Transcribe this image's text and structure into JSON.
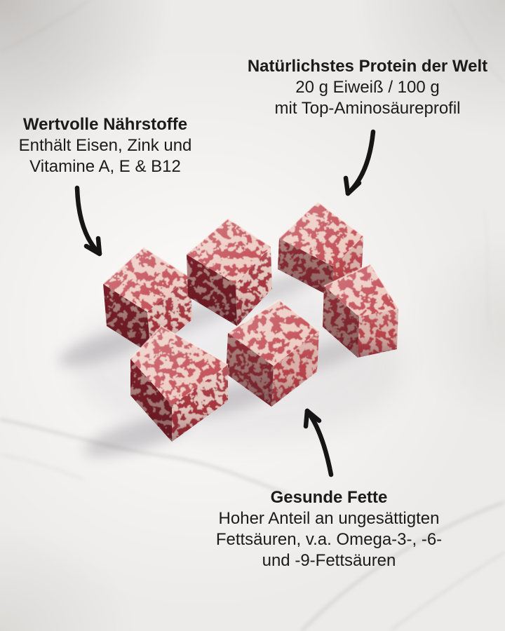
{
  "annotations": {
    "protein": {
      "title": "Natürlichstes Protein der Welt",
      "lines": [
        "20 g Eiweiß / 100 g",
        "mit Top-Aminosäureprofil"
      ]
    },
    "nutrients": {
      "title": "Wertvolle Nährstoffe",
      "lines": [
        "Enthält Eisen, Zink und",
        "Vitamine A, E & B12"
      ]
    },
    "fats": {
      "title": "Gesunde Fette",
      "lines": [
        "Hoher Anteil an ungesättigten",
        "Fettsäuren, v.a. Omega-3-, -6-",
        "und -9-Fettsäuren"
      ]
    }
  },
  "photo": {
    "subject": "Sechs marmorierte Fleischwürfel (Wagyu) auf weißem Marmor",
    "cube_count": 6
  },
  "colors": {
    "text": "#1b1b1b",
    "arrow": "#151515",
    "meat_red": "#ac3742",
    "meat_fat": "#ecc8be",
    "marble_background": "#edebe9"
  }
}
